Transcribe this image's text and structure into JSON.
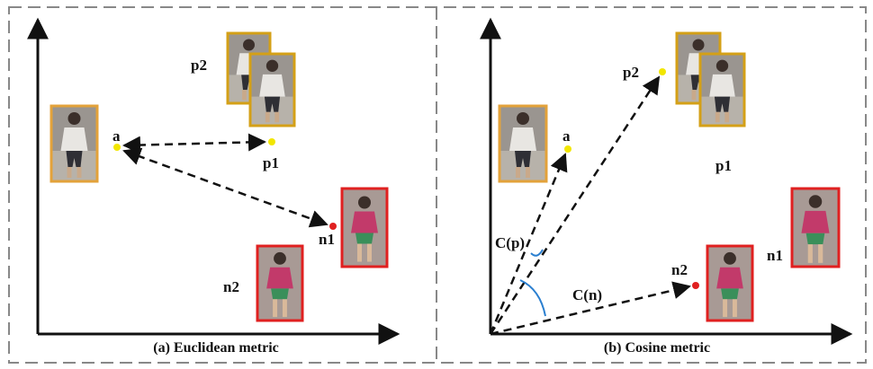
{
  "panels": [
    {
      "caption": "(a) Euclidean metric",
      "labels": {
        "a": "a",
        "p1": "p1",
        "p2": "p2",
        "n1": "n1",
        "n2": "n2"
      }
    },
    {
      "caption": "(b) Cosine metric",
      "labels": {
        "a": "a",
        "p1": "p1",
        "p2": "p2",
        "n1": "n1",
        "n2": "n2",
        "cp": "C(p)",
        "cn": "C(n)"
      }
    }
  ]
}
